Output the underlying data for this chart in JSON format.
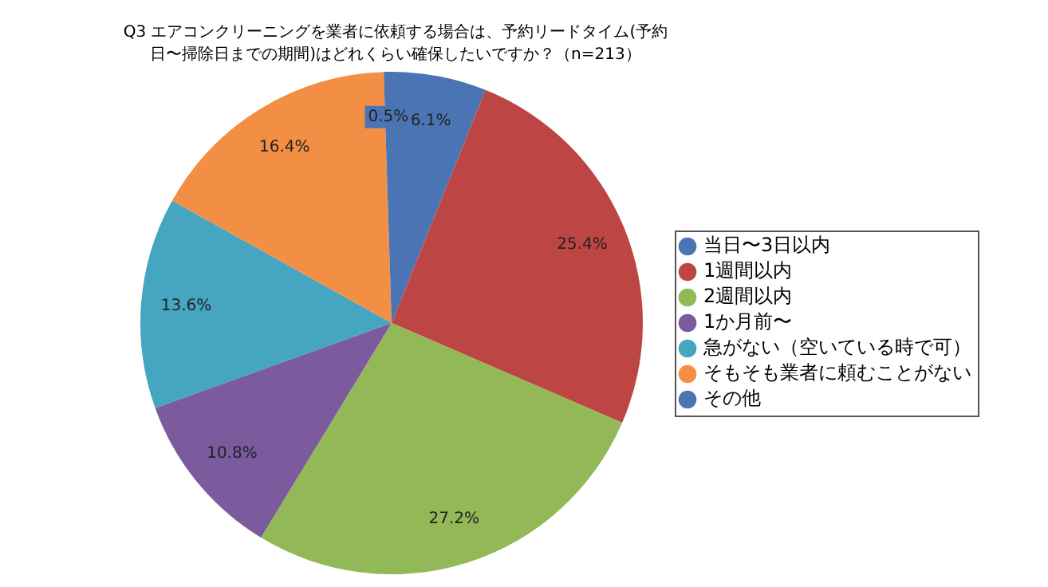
{
  "chart_data": {
    "type": "pie",
    "title": "Q3 エアコンクリーニングを業者に依頼する場合は、予約リードタイム(予約日〜掃除日までの期間)はどれくらい確保したいですか？（n=213）",
    "categories": [
      "当日〜3日以内",
      "1週間以内",
      "2週間以内",
      "1か月前〜",
      "急がない（空いている時で可）",
      "そもそも業者に頼むことがない",
      "その他"
    ],
    "values": [
      6.1,
      25.4,
      27.2,
      10.8,
      13.6,
      16.4,
      0.5
    ],
    "colors": [
      "#4a74b4",
      "#bd4644",
      "#93b858",
      "#7b5a9e",
      "#46a5c0",
      "#f38f44",
      "#4a74b4"
    ],
    "value_labels": [
      "6.1%",
      "25.4%",
      "27.2%",
      "10.8%",
      "13.6%",
      "16.4%",
      "0.5%"
    ],
    "legend": "right"
  }
}
